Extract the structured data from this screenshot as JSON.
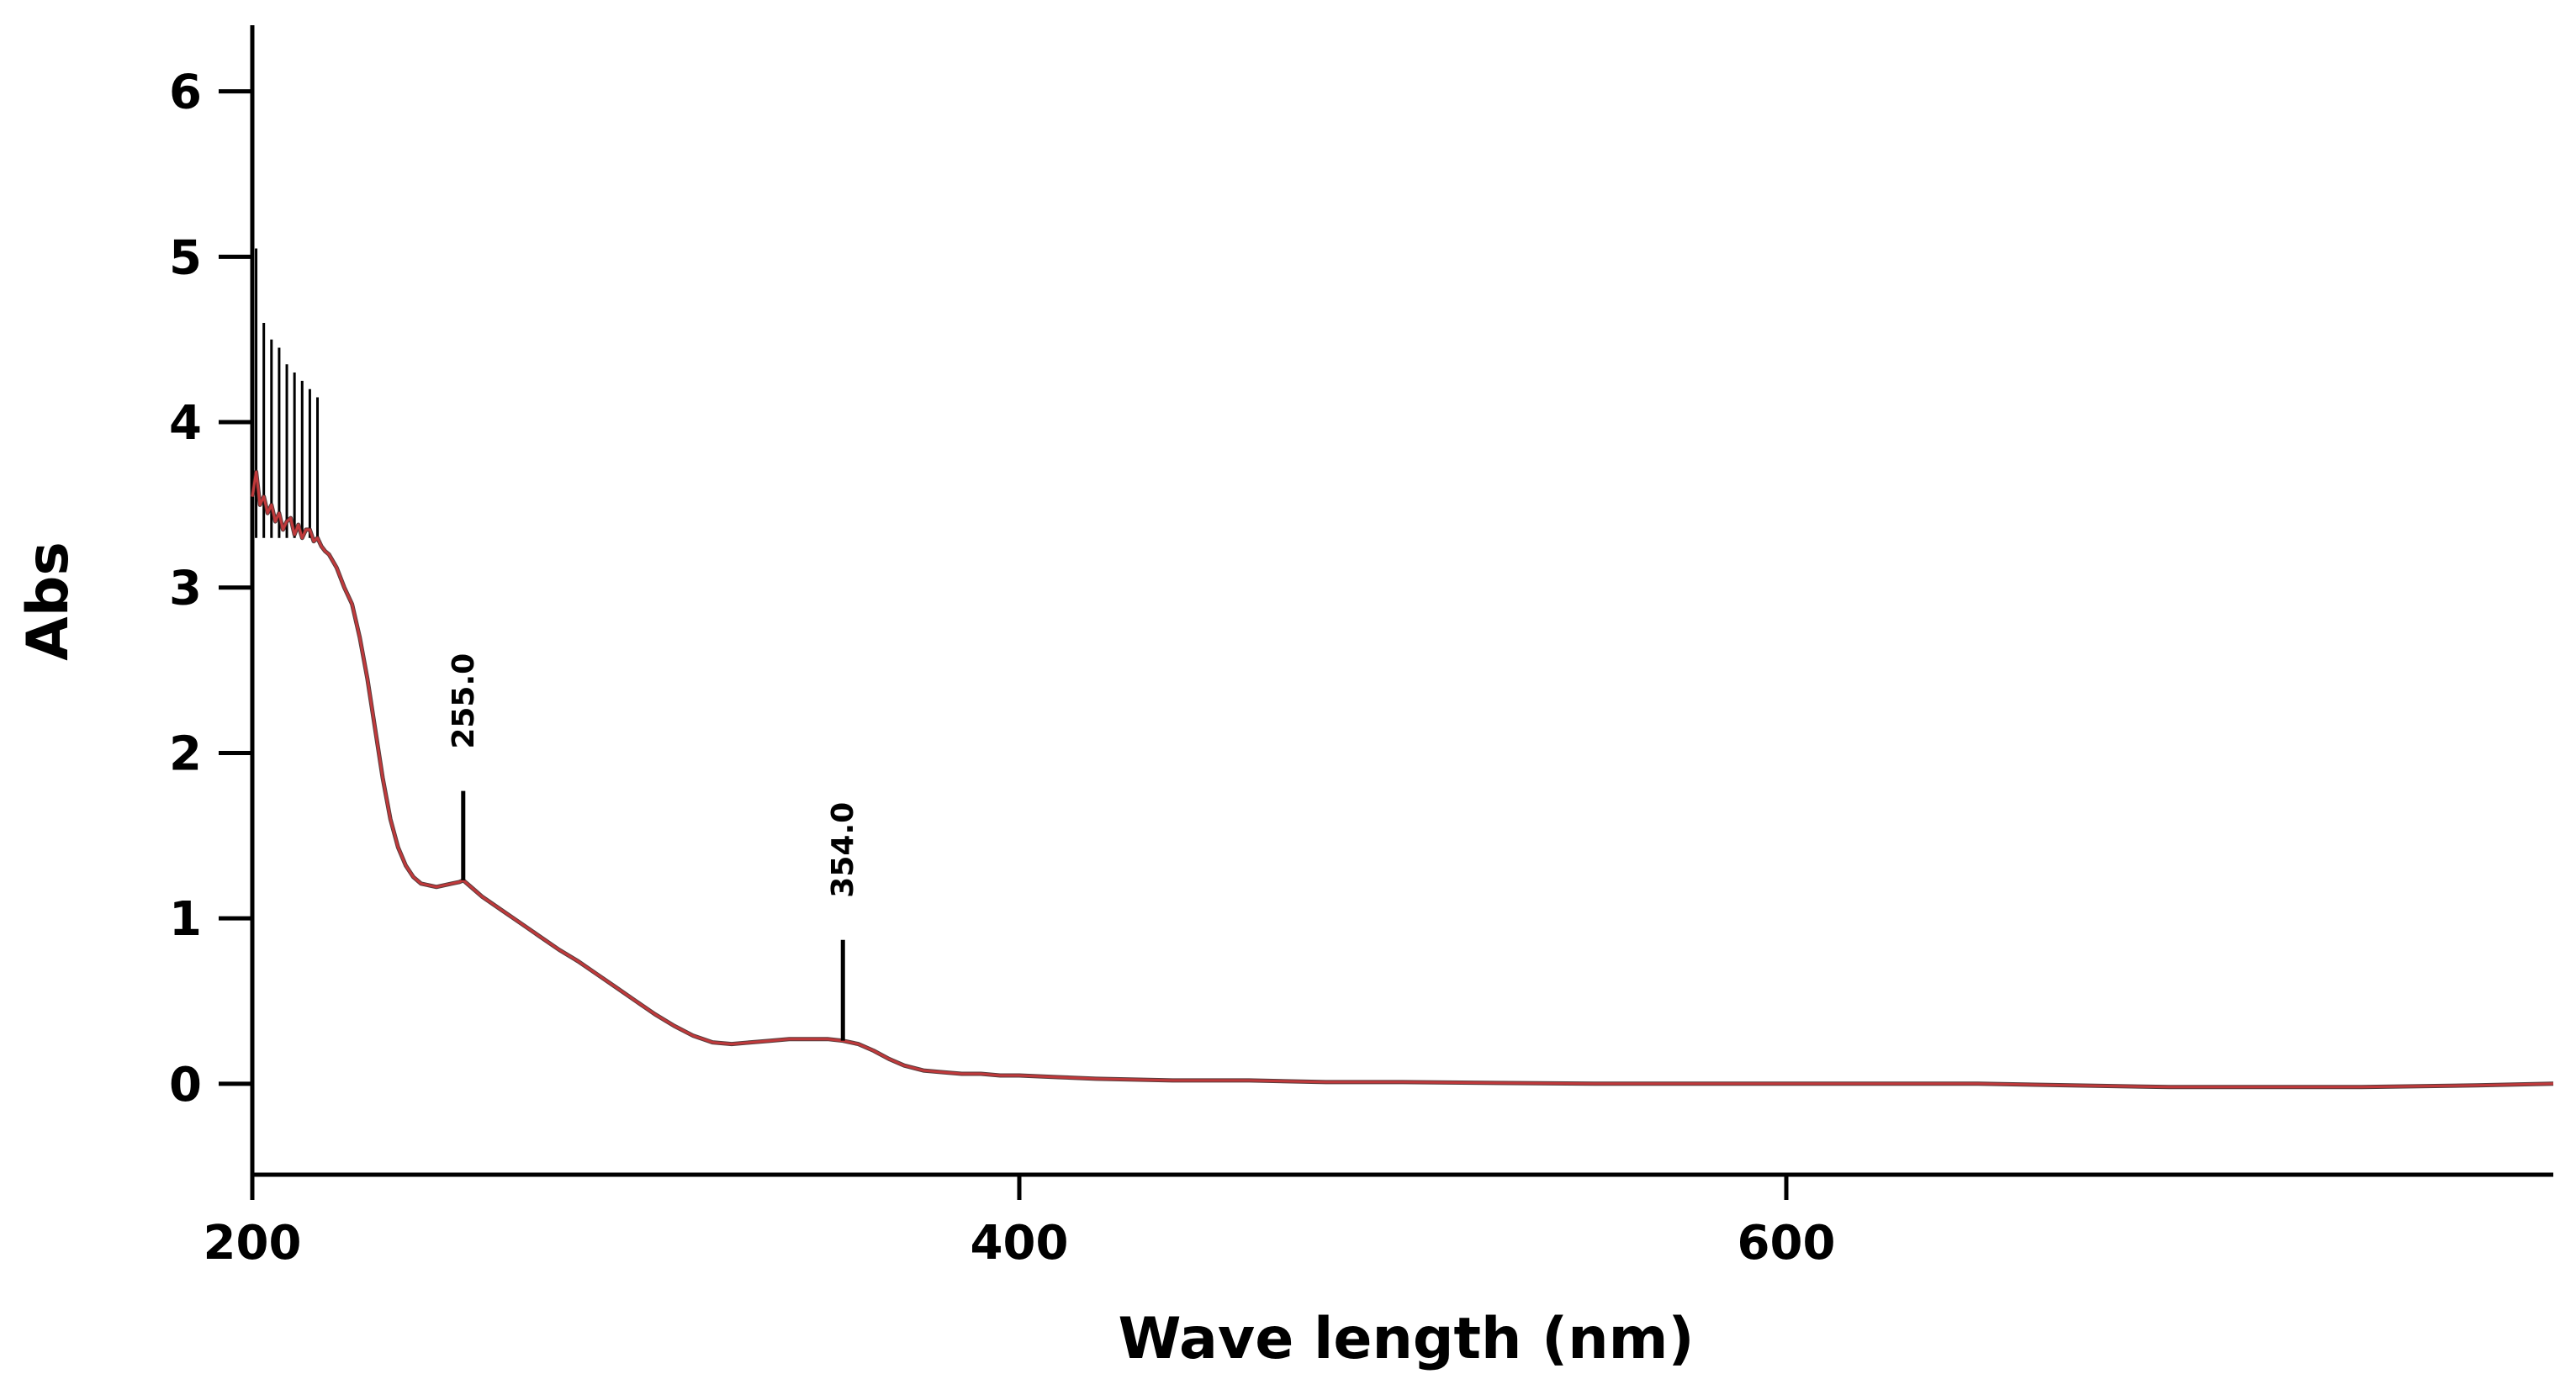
{
  "chart_data": {
    "type": "line",
    "title": "",
    "xlabel": "Wave length (nm)",
    "ylabel": "Abs",
    "xlim": [
      200,
      800
    ],
    "ylim": [
      -0.55,
      6.4
    ],
    "x_ticks": [
      200,
      400,
      600
    ],
    "x_tick_labels": [
      "200",
      "400",
      "600"
    ],
    "y_ticks": [
      0,
      1,
      2,
      3,
      4,
      5,
      6
    ],
    "y_tick_labels": [
      "0",
      "1",
      "2",
      "3",
      "4",
      "5",
      "6"
    ],
    "grid": false,
    "colors": {
      "curve": "#c0393b",
      "curve_overlay": "#3a1a1a",
      "axes": "#000000"
    },
    "series": [
      {
        "x": [
          200,
          201,
          202,
          203,
          204,
          205,
          206,
          207,
          208,
          209,
          210,
          211,
          212,
          213,
          214,
          215,
          216,
          217,
          218,
          219,
          220,
          222,
          224,
          226,
          228,
          230,
          232,
          234,
          236,
          238,
          240,
          242,
          244,
          246,
          248,
          250,
          252,
          254,
          255,
          256,
          258,
          260,
          265,
          270,
          275,
          280,
          285,
          290,
          295,
          300,
          305,
          310,
          315,
          320,
          325,
          330,
          335,
          340,
          345,
          350,
          354,
          358,
          362,
          366,
          370,
          375,
          380,
          385,
          390,
          395,
          400,
          410,
          420,
          440,
          460,
          480,
          500,
          550,
          600,
          650,
          700,
          750,
          780,
          800
        ],
        "y": [
          3.55,
          3.7,
          3.5,
          3.55,
          3.45,
          3.5,
          3.4,
          3.45,
          3.35,
          3.4,
          3.42,
          3.32,
          3.38,
          3.3,
          3.35,
          3.35,
          3.28,
          3.3,
          3.25,
          3.22,
          3.2,
          3.12,
          3.0,
          2.9,
          2.7,
          2.45,
          2.15,
          1.85,
          1.6,
          1.43,
          1.32,
          1.25,
          1.21,
          1.2,
          1.19,
          1.2,
          1.21,
          1.22,
          1.23,
          1.21,
          1.17,
          1.13,
          1.05,
          0.97,
          0.89,
          0.81,
          0.74,
          0.66,
          0.58,
          0.5,
          0.42,
          0.35,
          0.29,
          0.25,
          0.24,
          0.25,
          0.26,
          0.27,
          0.27,
          0.27,
          0.26,
          0.24,
          0.2,
          0.15,
          0.11,
          0.08,
          0.07,
          0.06,
          0.06,
          0.05,
          0.05,
          0.04,
          0.03,
          0.02,
          0.02,
          0.01,
          0.01,
          0.0,
          0.0,
          0.0,
          -0.02,
          -0.02,
          -0.01,
          0.0
        ]
      }
    ],
    "peak_markers": [
      {
        "label": "255.0",
        "x": 255.0,
        "y_base": 1.23,
        "y_top": 1.77
      },
      {
        "label": "354.0",
        "x": 354.0,
        "y_base": 0.26,
        "y_top": 0.87
      }
    ],
    "noise_labels": [
      {
        "x": 201,
        "y": 5.05
      },
      {
        "x": 203,
        "y": 4.6
      },
      {
        "x": 205,
        "y": 4.5
      },
      {
        "x": 207,
        "y": 4.45
      },
      {
        "x": 209,
        "y": 4.35
      },
      {
        "x": 211,
        "y": 4.3
      },
      {
        "x": 213,
        "y": 4.25
      },
      {
        "x": 215,
        "y": 4.2
      },
      {
        "x": 217,
        "y": 4.15
      }
    ]
  }
}
